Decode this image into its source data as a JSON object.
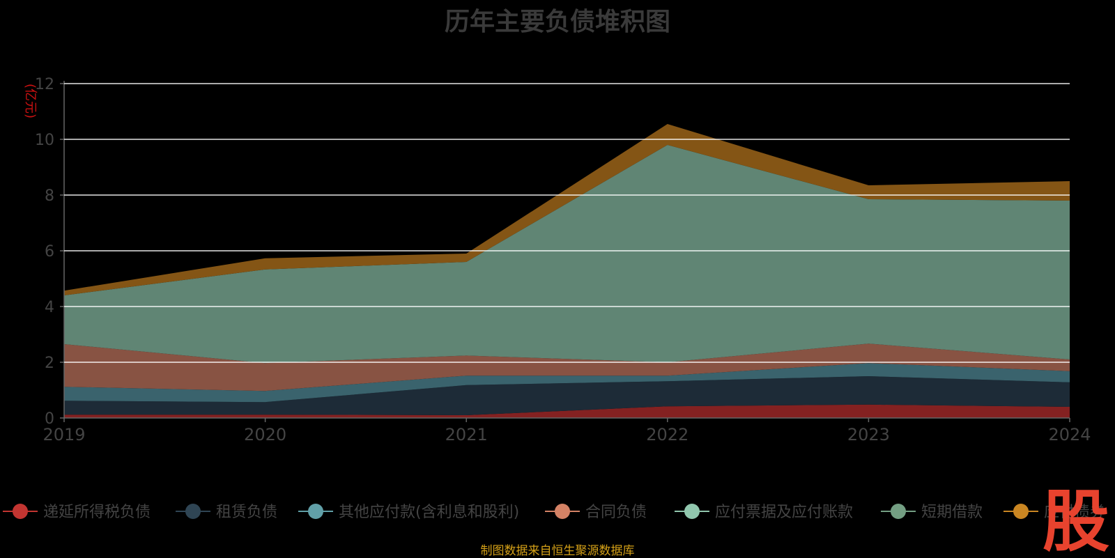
{
  "title": "历年主要负债堆积图",
  "footer_note": "制图数据来自恒生聚源数据库",
  "watermark_text": "股",
  "chart_data": {
    "type": "area",
    "stacked": true,
    "x": [
      "2019",
      "2020",
      "2021",
      "2022",
      "2023",
      "2024"
    ],
    "ylabel": "(亿元)",
    "ylim": [
      0,
      12
    ],
    "yticks": [
      "0",
      "2",
      "4",
      "6",
      "8",
      "10",
      "12"
    ],
    "grid": true,
    "legend_position": "bottom",
    "series": [
      {
        "name": "递延所得税负债",
        "color": "#8b2323",
        "marker_color": "#c23531",
        "values": [
          0.12,
          0.12,
          0.1,
          0.42,
          0.48,
          0.4
        ]
      },
      {
        "name": "租赁负债",
        "color": "#1f2d3a",
        "marker_color": "#2f4554",
        "values": [
          0.5,
          0.45,
          1.08,
          0.9,
          1.02,
          0.88
        ]
      },
      {
        "name": "其他应付款(含利息和股利)",
        "color": "#3d6873",
        "marker_color": "#61a0a8",
        "values": [
          0.5,
          0.4,
          0.34,
          0.2,
          0.47,
          0.4
        ]
      },
      {
        "name": "合同负债",
        "color": "#8f5747",
        "marker_color": "#d48265",
        "values": [
          1.53,
          1.0,
          0.72,
          0.48,
          0.7,
          0.42
        ]
      },
      {
        "name": "应付票据及应付账款",
        "color": "#5a8a73",
        "marker_color": "#91c7ae",
        "values": [
          0.0,
          0.0,
          0.0,
          0.0,
          0.0,
          0.0
        ]
      },
      {
        "name": "短期借款",
        "color": "#658c7a",
        "marker_color": "#749f83",
        "values": [
          1.75,
          3.36,
          3.36,
          7.8,
          5.18,
          5.7
        ]
      },
      {
        "name": "应付债券",
        "color": "#8b5a16",
        "marker_color": "#ca8622",
        "values": [
          0.17,
          0.4,
          0.3,
          0.75,
          0.5,
          0.7
        ]
      }
    ],
    "legend_labels": [
      "递延所得税负债",
      "租赁负债",
      "其他应付款(含利息和股利)",
      "合同负债",
      "应付票据及应付账款",
      "短期借款",
      "应付债券"
    ]
  }
}
